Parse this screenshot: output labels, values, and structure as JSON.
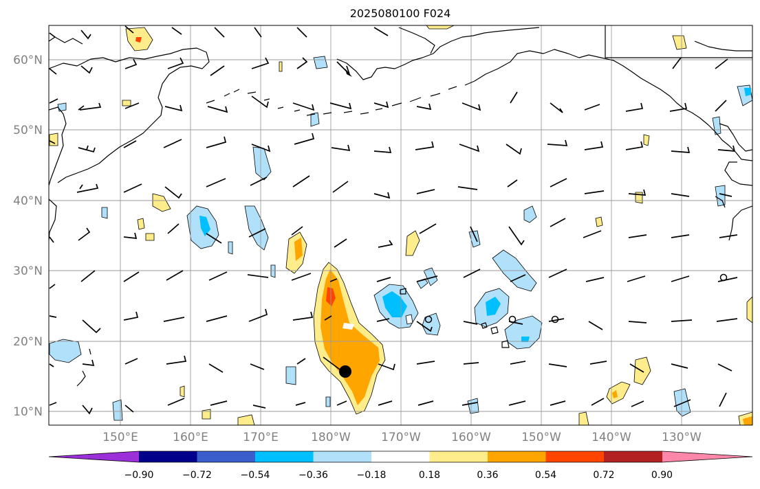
{
  "title": "2025080100 F024",
  "lat_labels": [
    "60°N",
    "50°N",
    "40°N",
    "30°N",
    "20°N",
    "10°N"
  ],
  "lon_labels": [
    "150°E",
    "160°E",
    "170°E",
    "180°W",
    "170°W",
    "160°W",
    "150°W",
    "140°W",
    "130°W"
  ],
  "colorbar": {
    "ticks": [
      "−0.90",
      "−0.72",
      "−0.54",
      "−0.36",
      "−0.18",
      "0.18",
      "0.36",
      "0.54",
      "0.72",
      "0.90"
    ],
    "colors": [
      "#9b30d9",
      "#00008b",
      "#3a5fcd",
      "#00bfff",
      "#b0e0fa",
      "#ffffff",
      "#ffec8b",
      "#ffa500",
      "#ff4500",
      "#b22222",
      "#ff88aa"
    ]
  },
  "shading_colors": {
    "light_blue": "#b0e0fa",
    "blue": "#00bfff",
    "light_yellow": "#ffec8b",
    "orange": "#ffa500",
    "red_orange": "#ff4500"
  },
  "markers": {
    "tropical_system": "filled-circle",
    "calm_winds": "open-circle"
  }
}
